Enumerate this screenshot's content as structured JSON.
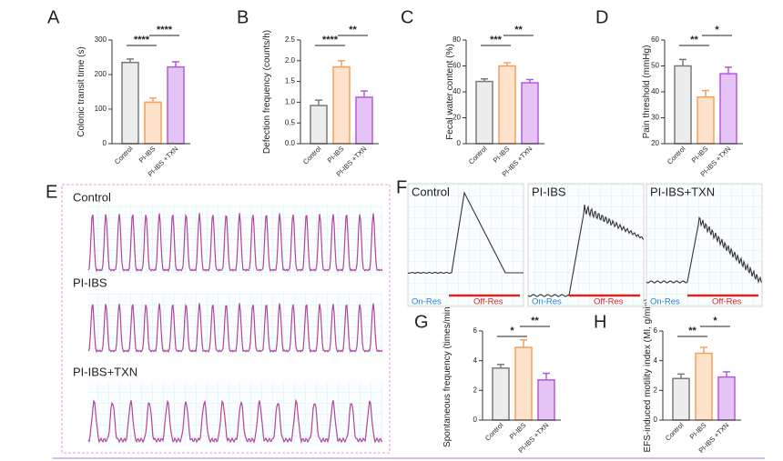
{
  "chart_data": [
    {
      "type": "bar",
      "panel": "A",
      "y_label": "Colonic transit time (s)",
      "categories": [
        "Control",
        "PI-IBS",
        "PI-IBS +TXN"
      ],
      "values": [
        235,
        120,
        222
      ],
      "errors": [
        10,
        12,
        15
      ],
      "colors": [
        "#7a7a7a",
        "#f5a05a",
        "#b45ad9"
      ],
      "fills": [
        "#ececec",
        "#fde3cc",
        "#e6c3f5"
      ],
      "ylim": [
        0,
        300
      ],
      "yticks": [
        0,
        100,
        200,
        300
      ],
      "brackets": [
        {
          "label": "****",
          "between": [
            "Control",
            "PI-IBS"
          ]
        },
        {
          "label": "****",
          "between": [
            "PI-IBS",
            "PI-IBS +TXN"
          ]
        }
      ]
    },
    {
      "type": "bar",
      "panel": "B",
      "y_label": "Defection frequency (counts/h)",
      "categories": [
        "Control",
        "PI-IBS",
        "PI-IBS +TXN"
      ],
      "values": [
        0.92,
        1.85,
        1.12
      ],
      "errors": [
        0.13,
        0.15,
        0.15
      ],
      "colors": [
        "#7a7a7a",
        "#f5a05a",
        "#b45ad9"
      ],
      "fills": [
        "#ececec",
        "#fde3cc",
        "#e6c3f5"
      ],
      "ylim": [
        0,
        2.5
      ],
      "yticks": [
        {
          "value": 0,
          "label": "0.0"
        },
        0.5,
        {
          "value": 1,
          "label": "1.0"
        },
        1.5,
        {
          "value": 2,
          "label": "2.0"
        },
        2.5
      ],
      "brackets": [
        {
          "label": "****",
          "between": [
            "Control",
            "PI-IBS"
          ]
        },
        {
          "label": "**",
          "between": [
            "PI-IBS",
            "PI-IBS +TXN"
          ]
        }
      ]
    },
    {
      "type": "bar",
      "panel": "C",
      "y_label": "Fecal water content (%)",
      "categories": [
        "Control",
        "PI-IBS",
        "PI-IBS +TXN"
      ],
      "values": [
        48,
        60,
        47
      ],
      "errors": [
        2,
        2.5,
        2.5
      ],
      "colors": [
        "#7a7a7a",
        "#f5a05a",
        "#b45ad9"
      ],
      "fills": [
        "#ececec",
        "#fde3cc",
        "#e6c3f5"
      ],
      "ylim": [
        0,
        80
      ],
      "yticks": [
        0,
        20,
        40,
        60,
        80
      ],
      "brackets": [
        {
          "label": "***",
          "between": [
            "Control",
            "PI-IBS"
          ]
        },
        {
          "label": "**",
          "between": [
            "PI-IBS",
            "PI-IBS +TXN"
          ]
        }
      ]
    },
    {
      "type": "bar",
      "panel": "D",
      "y_label": "Pain threshold (mmHg)",
      "categories": [
        "Control",
        "PI-IBS",
        "PI-IBS +TXN"
      ],
      "values": [
        50,
        38,
        47
      ],
      "errors": [
        2.5,
        2.5,
        2.5
      ],
      "colors": [
        "#7a7a7a",
        "#f5a05a",
        "#b45ad9"
      ],
      "fills": [
        "#ececec",
        "#fde3cc",
        "#e6c3f5"
      ],
      "ylim": [
        20,
        60
      ],
      "yticks": [
        20,
        30,
        40,
        50,
        60
      ],
      "brackets": [
        {
          "label": "**",
          "between": [
            "Control",
            "PI-IBS"
          ]
        },
        {
          "label": "*",
          "between": [
            "PI-IBS",
            "PI-IBS +TXN"
          ]
        }
      ]
    },
    {
      "type": "bar",
      "panel": "G",
      "y_label": "Spontaneous frequency (times/min)",
      "categories": [
        "Control",
        "PI-IBS",
        "PI-IBS +TXN"
      ],
      "values": [
        3.5,
        4.9,
        2.7
      ],
      "errors": [
        0.25,
        0.5,
        0.45
      ],
      "colors": [
        "#7a7a7a",
        "#f5a05a",
        "#b45ad9"
      ],
      "fills": [
        "#ececec",
        "#fde3cc",
        "#e6c3f5"
      ],
      "ylim": [
        0,
        6
      ],
      "yticks": [
        0,
        2,
        4,
        6
      ],
      "brackets": [
        {
          "label": "*",
          "between": [
            "Control",
            "PI-IBS"
          ]
        },
        {
          "label": "**",
          "between": [
            "PI-IBS",
            "PI-IBS +TXN"
          ]
        }
      ]
    },
    {
      "type": "bar",
      "panel": "H",
      "y_label": "EFS-induced motility index (MI, g/min)",
      "categories": [
        "Control",
        "PI-IBS",
        "PI-IBS +TXN"
      ],
      "values": [
        2.8,
        4.5,
        2.9
      ],
      "errors": [
        0.3,
        0.4,
        0.35
      ],
      "colors": [
        "#7a7a7a",
        "#f5a05a",
        "#b45ad9"
      ],
      "fills": [
        "#ececec",
        "#fde3cc",
        "#e6c3f5"
      ],
      "ylim": [
        0,
        6
      ],
      "yticks": [
        0,
        2,
        4,
        6
      ],
      "brackets": [
        {
          "label": "**",
          "between": [
            "Control",
            "PI-IBS"
          ]
        },
        {
          "label": "*",
          "between": [
            "PI-IBS",
            "PI-IBS +TXN"
          ]
        }
      ]
    }
  ],
  "trace_panels": {
    "E": {
      "panel": "E",
      "labels": [
        "Control",
        "PI-IBS",
        "PI-IBS+TXN"
      ]
    },
    "F": {
      "panel": "F",
      "labels": [
        "Control",
        "PI-IBS",
        "PI-IBS+TXN"
      ],
      "on": "On-Res",
      "off": "Off-Res"
    }
  }
}
